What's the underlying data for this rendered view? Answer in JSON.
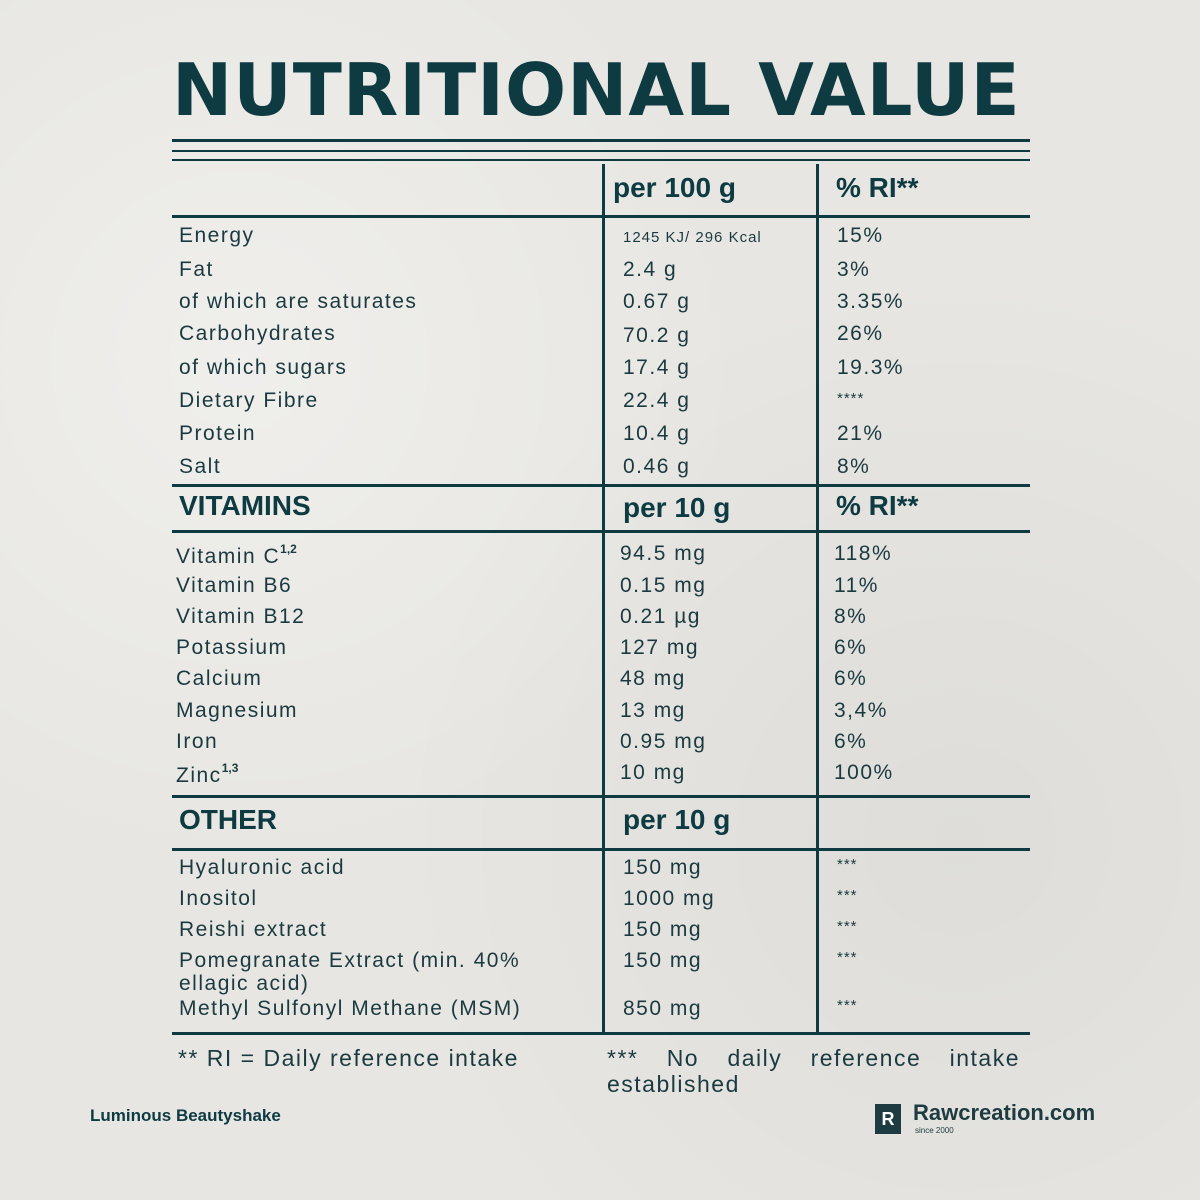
{
  "title": "NUTRITIONAL VALUE",
  "header": {
    "per": "per 100 g",
    "ri": "% RI**"
  },
  "nutrients": [
    {
      "name": "Energy",
      "value": "1245 KJ/ 296 Kcal",
      "ri": "15%"
    },
    {
      "name": "Fat",
      "value": "2.4 g",
      "ri": "3%"
    },
    {
      "name": "of which are saturates",
      "value": "0.67 g",
      "ri": "3.35%"
    },
    {
      "name": "Carbohydrates",
      "value": "70.2 g",
      "ri": "26%"
    },
    {
      "name": "of which sugars",
      "value": "17.4 g",
      "ri": "19.3%"
    },
    {
      "name": "Dietary Fibre",
      "value": "22.4 g",
      "ri": "****"
    },
    {
      "name": "Protein",
      "value": "10.4 g",
      "ri": "21%"
    },
    {
      "name": "Salt",
      "value": "0.46 g",
      "ri": "8%"
    }
  ],
  "vitamins": {
    "label": "VITAMINS",
    "per": "per 10 g",
    "ri": "% RI**",
    "rows": [
      {
        "name": "Vitamin C",
        "sup": "1,2",
        "value": "94.5 mg",
        "ri": "118%"
      },
      {
        "name": "Vitamin B6",
        "value": "0.15 mg",
        "ri": "11%"
      },
      {
        "name": "Vitamin B12",
        "value": "0.21 µg",
        "ri": "8%"
      },
      {
        "name": "Potassium",
        "value": "127 mg",
        "ri": "6%"
      },
      {
        "name": "Calcium",
        "value": "48 mg",
        "ri": "6%"
      },
      {
        "name": "Magnesium",
        "value": "13 mg",
        "ri": "3,4%"
      },
      {
        "name": "Iron",
        "value": "0.95 mg",
        "ri": "6%"
      },
      {
        "name": "Zinc",
        "sup": "1,3",
        "value": "10 mg",
        "ri": "100%"
      }
    ]
  },
  "other": {
    "label": "OTHER",
    "per": "per 10 g",
    "rows": [
      {
        "name": "Hyaluronic acid",
        "value": "150 mg",
        "ri": "***"
      },
      {
        "name": "Inositol",
        "value": "1000 mg",
        "ri": "***"
      },
      {
        "name": "Reishi extract",
        "value": "150 mg",
        "ri": "***"
      },
      {
        "name": "Pomegranate Extract (min. 40%",
        "name2": "ellagic acid)",
        "value": "150 mg",
        "ri": "***"
      },
      {
        "name": "Methyl Sulfonyl Methane (MSM)",
        "value": "850 mg",
        "ri": "***"
      }
    ]
  },
  "footnotes": {
    "left": "** RI = Daily reference intake",
    "right": "*** No daily reference intake established"
  },
  "product_name": "Luminous Beautyshake",
  "brand": {
    "letter": "R",
    "name": "Rawcreation.com",
    "tagline": "since 2000"
  }
}
